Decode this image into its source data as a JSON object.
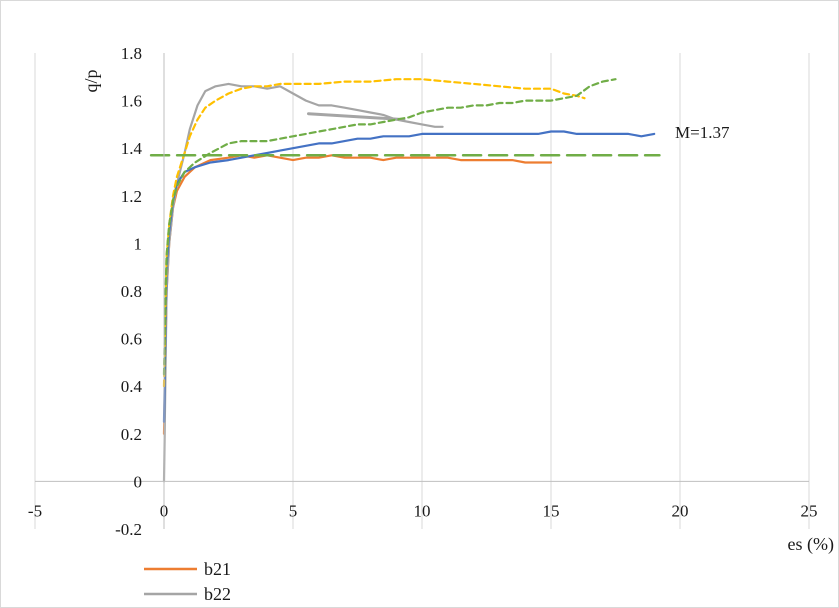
{
  "chart_data": {
    "type": "line",
    "xlabel": "es (%)",
    "ylabel": "q/p",
    "xlim": [
      -5,
      25
    ],
    "ylim": [
      -0.2,
      1.8
    ],
    "x_ticks": [
      -5,
      0,
      5,
      10,
      15,
      20,
      25
    ],
    "y_ticks": [
      -0.2,
      0,
      0.2,
      0.4,
      0.6,
      0.8,
      1,
      1.2,
      1.4,
      1.6,
      1.8
    ],
    "x_tick_labels": [
      "-5",
      "0",
      "5",
      "10",
      "15",
      "20",
      "25"
    ],
    "y_tick_labels": [
      "-0.2",
      "0",
      "0.2",
      "0.4",
      "0.6",
      "0.8",
      "1",
      "1.2",
      "1.4",
      "1.6",
      "1.8"
    ],
    "grid": "vertical",
    "legend_position": "bottom-left",
    "annotation": {
      "text": "M=1.37",
      "x": 19.5,
      "y": 1.37
    },
    "series": [
      {
        "name": "b21",
        "color": "#ed7d31",
        "dash": "solid",
        "show_in_legend": true,
        "x": [
          0,
          0.05,
          0.1,
          0.2,
          0.35,
          0.5,
          0.8,
          1.2,
          1.8,
          2.5,
          3.0,
          3.5,
          4.0,
          4.5,
          5.0,
          5.5,
          6.0,
          6.5,
          7.0,
          7.5,
          8.0,
          8.5,
          9.0,
          9.5,
          10.0,
          10.5,
          11.0,
          11.5,
          12.0,
          12.5,
          13.0,
          13.5,
          14.0,
          14.5,
          15.0
        ],
        "y": [
          0.2,
          0.5,
          0.8,
          1.0,
          1.15,
          1.22,
          1.28,
          1.32,
          1.35,
          1.36,
          1.37,
          1.36,
          1.37,
          1.36,
          1.35,
          1.36,
          1.36,
          1.37,
          1.36,
          1.36,
          1.36,
          1.35,
          1.36,
          1.36,
          1.36,
          1.36,
          1.36,
          1.35,
          1.35,
          1.35,
          1.35,
          1.35,
          1.34,
          1.34,
          1.34
        ]
      },
      {
        "name": "b22",
        "color": "#a5a5a5",
        "dash": "solid",
        "show_in_legend": true,
        "x": [
          0,
          0.05,
          0.1,
          0.2,
          0.35,
          0.5,
          0.8,
          1.0,
          1.3,
          1.6,
          2.0,
          2.5,
          3.0,
          3.5,
          4.0,
          4.5,
          5.0,
          5.5,
          6.0,
          6.5,
          7.0,
          7.5,
          8.0,
          8.5,
          9.0,
          9.5,
          10.0,
          10.5,
          10.8
        ],
        "y": [
          0,
          0.4,
          0.8,
          1.0,
          1.15,
          1.25,
          1.38,
          1.48,
          1.58,
          1.64,
          1.66,
          1.67,
          1.66,
          1.66,
          1.65,
          1.66,
          1.63,
          1.6,
          1.58,
          1.58,
          1.57,
          1.56,
          1.55,
          1.54,
          1.52,
          1.51,
          1.5,
          1.49,
          1.49
        ]
      },
      {
        "name": "",
        "color": "#a5a5a5",
        "dash": "solid",
        "show_in_legend": false,
        "width": 3,
        "x": [
          5.6,
          9.3
        ],
        "y": [
          1.545,
          1.52
        ]
      },
      {
        "name": "",
        "color": "#4472c4",
        "dash": "solid",
        "show_in_legend": false,
        "x": [
          0,
          0.05,
          0.1,
          0.2,
          0.35,
          0.5,
          0.8,
          1.2,
          1.8,
          2.5,
          3.0,
          3.5,
          4.0,
          4.5,
          5.0,
          5.5,
          6.0,
          6.5,
          7.0,
          7.5,
          8.0,
          8.5,
          9.0,
          9.5,
          10.0,
          10.5,
          11.0,
          11.5,
          12.0,
          12.5,
          13.0,
          13.5,
          14.0,
          14.5,
          15.0,
          15.5,
          16.0,
          16.5,
          17.0,
          17.5,
          18.0,
          18.5,
          19.0
        ],
        "y": [
          0.25,
          0.6,
          0.9,
          1.05,
          1.18,
          1.25,
          1.3,
          1.32,
          1.34,
          1.35,
          1.36,
          1.37,
          1.38,
          1.39,
          1.4,
          1.41,
          1.42,
          1.42,
          1.43,
          1.44,
          1.44,
          1.45,
          1.45,
          1.45,
          1.46,
          1.46,
          1.46,
          1.46,
          1.46,
          1.46,
          1.46,
          1.46,
          1.46,
          1.46,
          1.47,
          1.47,
          1.46,
          1.46,
          1.46,
          1.46,
          1.46,
          1.45,
          1.46
        ]
      },
      {
        "name": "",
        "color": "#ffc000",
        "dash": "short",
        "show_in_legend": false,
        "x": [
          0,
          0.05,
          0.1,
          0.2,
          0.35,
          0.5,
          0.8,
          1.0,
          1.3,
          1.6,
          2.0,
          2.5,
          3.0,
          3.5,
          4.0,
          4.5,
          5.0,
          5.5,
          6.0,
          7.0,
          8.0,
          9.0,
          10.0,
          11.0,
          12.0,
          13.0,
          14.0,
          15.0,
          15.5,
          16.0,
          16.3
        ],
        "y": [
          0.4,
          0.7,
          0.95,
          1.08,
          1.2,
          1.28,
          1.38,
          1.45,
          1.52,
          1.57,
          1.6,
          1.63,
          1.65,
          1.66,
          1.66,
          1.67,
          1.67,
          1.67,
          1.67,
          1.68,
          1.68,
          1.69,
          1.69,
          1.68,
          1.67,
          1.66,
          1.65,
          1.65,
          1.63,
          1.62,
          1.61
        ]
      },
      {
        "name": "",
        "color": "#70ad47",
        "dash": "short",
        "show_in_legend": false,
        "x": [
          0,
          0.05,
          0.1,
          0.2,
          0.35,
          0.5,
          0.8,
          1.2,
          1.8,
          2.5,
          3.0,
          3.5,
          4.0,
          4.5,
          5.0,
          5.5,
          6.0,
          6.5,
          7.0,
          7.5,
          8.0,
          8.5,
          9.0,
          9.5,
          10.0,
          10.5,
          11.0,
          11.5,
          12.0,
          12.5,
          13.0,
          13.5,
          14.0,
          14.5,
          15.0,
          15.5,
          16.0,
          16.5,
          17.0,
          17.5
        ],
        "y": [
          0.45,
          0.75,
          0.95,
          1.08,
          1.18,
          1.24,
          1.3,
          1.34,
          1.38,
          1.42,
          1.43,
          1.43,
          1.43,
          1.44,
          1.45,
          1.46,
          1.47,
          1.48,
          1.49,
          1.5,
          1.5,
          1.51,
          1.52,
          1.53,
          1.55,
          1.56,
          1.57,
          1.57,
          1.58,
          1.58,
          1.59,
          1.59,
          1.6,
          1.6,
          1.6,
          1.61,
          1.62,
          1.66,
          1.68,
          1.69
        ]
      },
      {
        "name": "",
        "color": "#70ad47",
        "dash": "long",
        "show_in_legend": false,
        "width": 2.5,
        "x": [
          -0.5,
          19.2
        ],
        "y": [
          1.37,
          1.37
        ]
      }
    ]
  }
}
